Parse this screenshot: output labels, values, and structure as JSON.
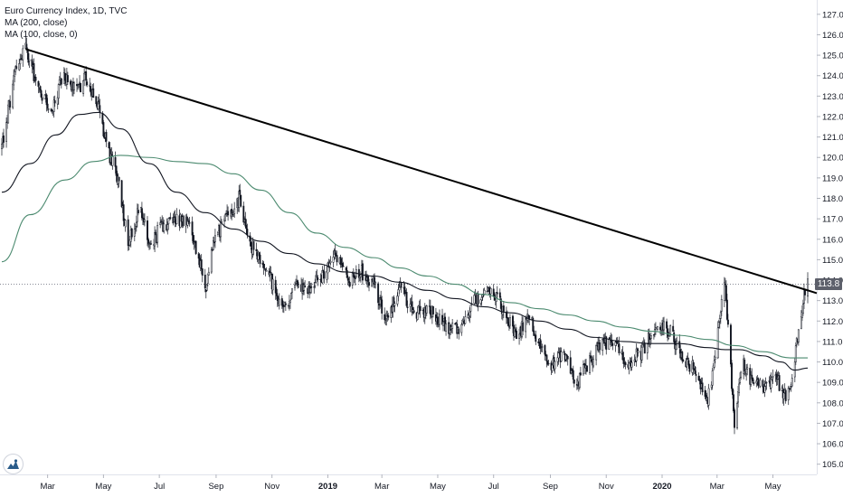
{
  "legend": {
    "symbol": "Euro Currency Index, 1D, TVC",
    "ma200": "MA (200, close)",
    "ma100": "MA (100, close, 0)"
  },
  "last_price_label": "113.8",
  "colors": {
    "candle_up": "#131722",
    "candle_down": "#131722",
    "ma200": "#4b8a6f",
    "ma100": "#131722",
    "trendline": "#000000",
    "axis_text": "#131722",
    "price_tag_bg": "#5d606b"
  },
  "chart_data": {
    "type": "candlestick",
    "title": "Euro Currency Index, 1D, TVC",
    "x_range": [
      "2018-01-10",
      "2020-06-08"
    ],
    "x_ticks": [
      {
        "label": "Mar",
        "date": "2018-03-01"
      },
      {
        "label": "May",
        "date": "2018-05-01"
      },
      {
        "label": "Jul",
        "date": "2018-07-01"
      },
      {
        "label": "Sep",
        "date": "2018-09-01"
      },
      {
        "label": "Nov",
        "date": "2018-11-01"
      },
      {
        "label": "2019",
        "date": "2019-01-01"
      },
      {
        "label": "Mar",
        "date": "2019-03-01"
      },
      {
        "label": "May",
        "date": "2019-05-01"
      },
      {
        "label": "Jul",
        "date": "2019-07-01"
      },
      {
        "label": "Sep",
        "date": "2019-09-01"
      },
      {
        "label": "Nov",
        "date": "2019-11-01"
      },
      {
        "label": "2020",
        "date": "2020-01-01"
      },
      {
        "label": "Mar",
        "date": "2020-03-01"
      },
      {
        "label": "May",
        "date": "2020-05-01"
      }
    ],
    "y_axis": {
      "range": [
        104.5,
        127.7
      ],
      "ticks": [
        105.0,
        106.0,
        107.0,
        108.0,
        109.0,
        110.0,
        111.0,
        112.0,
        113.0,
        114.0,
        115.0,
        116.0,
        117.0,
        118.0,
        119.0,
        120.0,
        121.0,
        122.0,
        123.0,
        124.0,
        125.0,
        126.0,
        127.0
      ],
      "position": "right"
    },
    "last_price": 113.8,
    "price_path": [
      [
        "2018-01-10",
        120.5
      ],
      [
        "2018-01-24",
        124.0
      ],
      [
        "2018-02-05",
        125.3
      ],
      [
        "2018-02-18",
        123.5
      ],
      [
        "2018-03-05",
        122.2
      ],
      [
        "2018-03-18",
        124.1
      ],
      [
        "2018-04-01",
        123.2
      ],
      [
        "2018-04-12",
        124.0
      ],
      [
        "2018-04-26",
        122.4
      ],
      [
        "2018-05-05",
        120.5
      ],
      [
        "2018-05-16",
        119.0
      ],
      [
        "2018-05-28",
        116.0
      ],
      [
        "2018-06-10",
        117.5
      ],
      [
        "2018-06-21",
        115.5
      ],
      [
        "2018-07-01",
        116.5
      ],
      [
        "2018-07-16",
        117.0
      ],
      [
        "2018-08-01",
        116.8
      ],
      [
        "2018-08-14",
        115.0
      ],
      [
        "2018-08-21",
        113.6
      ],
      [
        "2018-08-27",
        115.5
      ],
      [
        "2018-09-10",
        117.0
      ],
      [
        "2018-09-26",
        118.0
      ],
      [
        "2018-10-08",
        115.8
      ],
      [
        "2018-10-22",
        114.8
      ],
      [
        "2018-11-05",
        113.5
      ],
      [
        "2018-11-14",
        112.5
      ],
      [
        "2018-11-26",
        113.6
      ],
      [
        "2018-12-12",
        113.5
      ],
      [
        "2018-12-30",
        114.5
      ],
      [
        "2019-01-10",
        115.2
      ],
      [
        "2019-01-24",
        114.0
      ],
      [
        "2019-02-05",
        114.5
      ],
      [
        "2019-02-20",
        113.8
      ],
      [
        "2019-03-07",
        112.0
      ],
      [
        "2019-03-20",
        113.8
      ],
      [
        "2019-04-03",
        112.5
      ],
      [
        "2019-04-22",
        112.5
      ],
      [
        "2019-05-08",
        111.8
      ],
      [
        "2019-05-23",
        111.5
      ],
      [
        "2019-06-07",
        112.8
      ],
      [
        "2019-06-20",
        113.5
      ],
      [
        "2019-06-28",
        113.6
      ],
      [
        "2019-07-12",
        112.5
      ],
      [
        "2019-07-26",
        111.2
      ],
      [
        "2019-08-08",
        112.3
      ],
      [
        "2019-08-20",
        110.8
      ],
      [
        "2019-09-03",
        109.8
      ],
      [
        "2019-09-15",
        110.5
      ],
      [
        "2019-09-30",
        109.0
      ],
      [
        "2019-10-14",
        110.0
      ],
      [
        "2019-10-28",
        111.0
      ],
      [
        "2019-11-10",
        110.8
      ],
      [
        "2019-11-25",
        110.0
      ],
      [
        "2019-12-10",
        110.5
      ],
      [
        "2019-12-26",
        111.8
      ],
      [
        "2020-01-09",
        111.5
      ],
      [
        "2020-01-23",
        110.3
      ],
      [
        "2020-02-06",
        109.6
      ],
      [
        "2020-02-20",
        108.1
      ],
      [
        "2020-02-28",
        110.3
      ],
      [
        "2020-03-09",
        114.2
      ],
      [
        "2020-03-14",
        111.2
      ],
      [
        "2020-03-20",
        106.8
      ],
      [
        "2020-03-28",
        110.0
      ],
      [
        "2020-04-06",
        109.2
      ],
      [
        "2020-04-20",
        108.8
      ],
      [
        "2020-05-04",
        109.3
      ],
      [
        "2020-05-14",
        108.3
      ],
      [
        "2020-05-22",
        109.3
      ],
      [
        "2020-05-28",
        111.3
      ],
      [
        "2020-06-03",
        113.1
      ],
      [
        "2020-06-08",
        113.8
      ]
    ],
    "series": [
      {
        "name": "MA (200, close)",
        "points": [
          [
            "2018-01-10",
            114.9
          ],
          [
            "2018-02-10",
            117.2
          ],
          [
            "2018-03-20",
            118.9
          ],
          [
            "2018-04-20",
            119.8
          ],
          [
            "2018-05-20",
            120.1
          ],
          [
            "2018-06-20",
            120.0
          ],
          [
            "2018-07-20",
            119.8
          ],
          [
            "2018-08-20",
            119.7
          ],
          [
            "2018-09-20",
            119.2
          ],
          [
            "2018-10-20",
            118.4
          ],
          [
            "2018-11-20",
            117.3
          ],
          [
            "2018-12-20",
            116.3
          ],
          [
            "2019-01-20",
            115.6
          ],
          [
            "2019-02-20",
            115.1
          ],
          [
            "2019-03-20",
            114.6
          ],
          [
            "2019-04-20",
            114.2
          ],
          [
            "2019-05-20",
            113.8
          ],
          [
            "2019-06-20",
            113.3
          ],
          [
            "2019-07-20",
            112.9
          ],
          [
            "2019-08-20",
            112.6
          ],
          [
            "2019-09-20",
            112.3
          ],
          [
            "2019-10-20",
            112.0
          ],
          [
            "2019-11-20",
            111.7
          ],
          [
            "2019-12-20",
            111.5
          ],
          [
            "2020-01-20",
            111.3
          ],
          [
            "2020-02-20",
            111.1
          ],
          [
            "2020-03-20",
            110.8
          ],
          [
            "2020-04-20",
            110.5
          ],
          [
            "2020-05-20",
            110.2
          ],
          [
            "2020-06-08",
            110.2
          ]
        ]
      },
      {
        "name": "MA (100, close, 0)",
        "points": [
          [
            "2018-01-10",
            118.3
          ],
          [
            "2018-02-10",
            119.7
          ],
          [
            "2018-03-10",
            121.1
          ],
          [
            "2018-04-05",
            122.1
          ],
          [
            "2018-04-25",
            122.2
          ],
          [
            "2018-05-20",
            121.4
          ],
          [
            "2018-06-20",
            119.7
          ],
          [
            "2018-07-20",
            118.3
          ],
          [
            "2018-08-20",
            117.3
          ],
          [
            "2018-09-20",
            116.5
          ],
          [
            "2018-10-20",
            115.9
          ],
          [
            "2018-11-20",
            115.3
          ],
          [
            "2018-12-20",
            114.8
          ],
          [
            "2019-01-20",
            114.4
          ],
          [
            "2019-02-20",
            114.2
          ],
          [
            "2019-03-20",
            113.9
          ],
          [
            "2019-04-20",
            113.5
          ],
          [
            "2019-05-20",
            113.1
          ],
          [
            "2019-06-20",
            112.7
          ],
          [
            "2019-07-20",
            112.4
          ],
          [
            "2019-08-20",
            112.0
          ],
          [
            "2019-09-20",
            111.6
          ],
          [
            "2019-10-20",
            111.2
          ],
          [
            "2019-11-20",
            111.0
          ],
          [
            "2019-12-20",
            110.9
          ],
          [
            "2020-01-20",
            110.9
          ],
          [
            "2020-02-20",
            110.7
          ],
          [
            "2020-03-10",
            110.6
          ],
          [
            "2020-03-25",
            110.6
          ],
          [
            "2020-04-20",
            110.3
          ],
          [
            "2020-05-10",
            110.0
          ],
          [
            "2020-05-25",
            109.6
          ],
          [
            "2020-06-08",
            109.7
          ]
        ]
      }
    ],
    "trendline": {
      "name": "Trendline",
      "from": [
        "2018-02-05",
        125.3
      ],
      "to": [
        "2020-06-08",
        113.5
      ]
    },
    "horizontal_line": {
      "value": 113.8,
      "style": "dotted"
    },
    "grid": false,
    "legend_position": "top-left"
  }
}
